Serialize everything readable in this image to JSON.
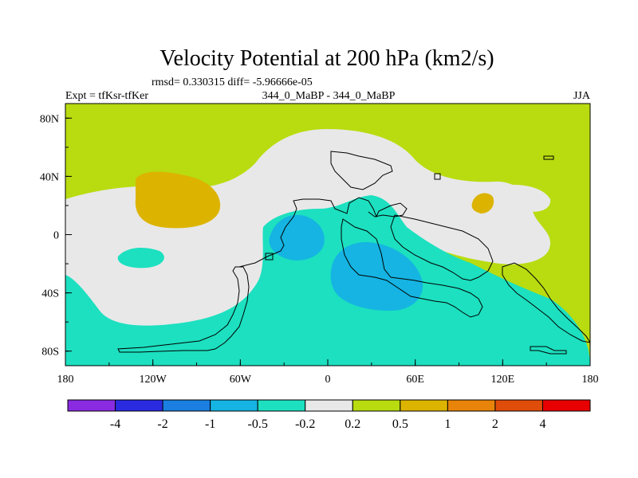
{
  "chart_data": {
    "type": "heatmap",
    "title": "Velocity Potential at 200 hPa (km2/s)",
    "stats_text": "rmsd= 0.330315 diff= -5.96666e-05",
    "left_label": "Expt = tfKsr-tfKer",
    "center_label": "344_0_MaBP - 344_0_MaBP",
    "right_label": "JJA",
    "x_ticks": [
      "180",
      "120W",
      "60W",
      "0",
      "60E",
      "120E",
      "180"
    ],
    "y_ticks": [
      "80N",
      "40N",
      "0",
      "40S",
      "80S"
    ],
    "xlim": [
      -180,
      180
    ],
    "ylim": [
      -90,
      90
    ],
    "contour_levels": [
      -4,
      -2,
      -1,
      -0.5,
      -0.2,
      0.2,
      0.5,
      1,
      2,
      4
    ],
    "level_labels": [
      "-4",
      "-2",
      "-1",
      "-0.5",
      "-0.2",
      "0.2",
      "0.5",
      "1",
      "2",
      "4"
    ],
    "colorbar_colors": [
      "#8a2be2",
      "#2a2ae0",
      "#1a7fe0",
      "#15b4e2",
      "#1ce0c0",
      "#e8e8e8",
      "#b8dc10",
      "#dcb400",
      "#e8840a",
      "#e04c0a",
      "#e80000"
    ]
  },
  "colors": {
    "background_fill": "#b8dc10",
    "neutral": "#e8e8e8",
    "cyan": "#1ce0c0",
    "blue": "#15b4e2",
    "gold": "#dcb400",
    "outline": "#000000"
  }
}
